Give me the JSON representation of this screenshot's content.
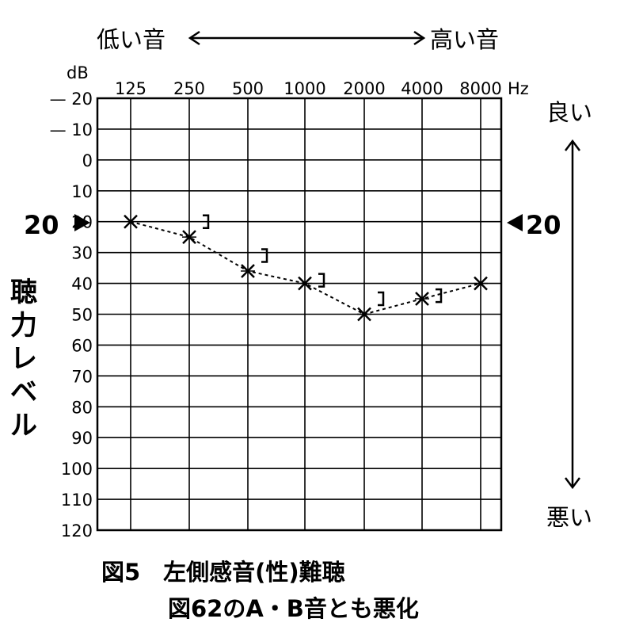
{
  "chart_data": {
    "type": "line",
    "chart_kind": "audiogram",
    "x_unit": "Hz",
    "y_unit": "dB",
    "y_axis_title": "聴力レベル",
    "x_tick_labels": [
      "125",
      "250",
      "500",
      "1000",
      "2000",
      "4000",
      "8000"
    ],
    "y_tick_labels": [
      "-20",
      "-10",
      "0",
      "10",
      "20",
      "30",
      "40",
      "50",
      "60",
      "70",
      "80",
      "90",
      "100",
      "110",
      "120"
    ],
    "ylim": [
      -20,
      120
    ],
    "y_inverted": true,
    "grid": true,
    "series": [
      {
        "marker": "x",
        "line": "dashed",
        "x": [
          125,
          250,
          500,
          1000,
          2000,
          4000,
          8000
        ],
        "values": [
          20,
          25,
          36,
          40,
          50,
          45,
          40
        ]
      },
      {
        "marker": "]",
        "line": "none",
        "x": [
          250,
          500,
          1000,
          2000,
          4000
        ],
        "values": [
          20,
          31,
          39,
          45,
          44
        ]
      }
    ],
    "level_markers": {
      "left": "20",
      "right": "20",
      "value": 20
    }
  },
  "labels": {
    "low_sound": "低い音",
    "high_sound": "高い音",
    "db": "dB",
    "hz": "Hz",
    "good": "良い",
    "bad": "悪い",
    "level_left": "20",
    "level_right": "20",
    "caption_line1": "図5　左側感音(性)難聴",
    "caption_line2": "図62のA・B音とも悪化"
  },
  "colors": {
    "ink": "#000000",
    "background": "#ffffff"
  }
}
